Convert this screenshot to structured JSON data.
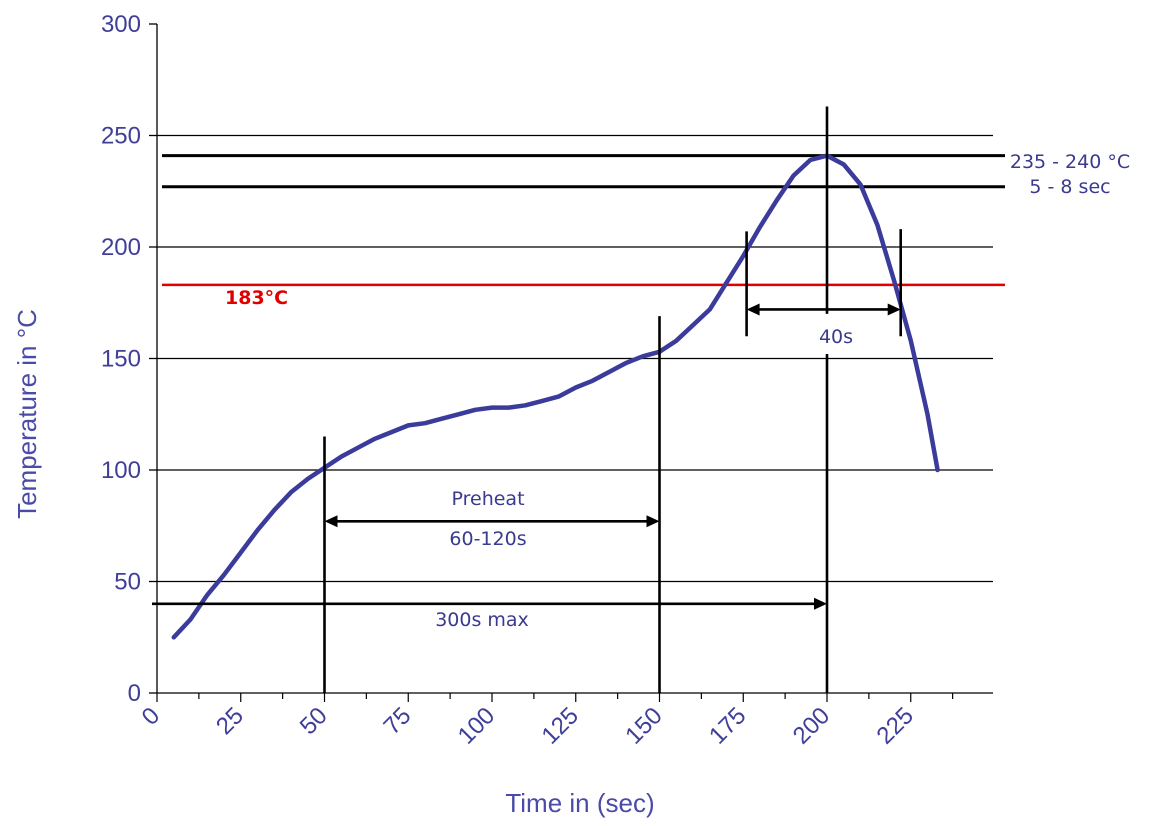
{
  "chart_data": {
    "type": "line",
    "title": "",
    "xlabel": "Time in (sec)",
    "ylabel": "Temperature in °C",
    "xlim": [
      0,
      235
    ],
    "ylim": [
      0,
      300
    ],
    "x_ticks": [
      "0",
      "25",
      "50",
      "75",
      "100",
      "125",
      "150",
      "175",
      "200",
      "225"
    ],
    "y_ticks": [
      "0",
      "50",
      "100",
      "150",
      "200",
      "250",
      "300"
    ],
    "grid": "horizontal",
    "series": [
      {
        "name": "",
        "color": "#3b3b9b",
        "x": [
          5,
          10,
          15,
          20,
          25,
          30,
          35,
          40,
          45,
          50,
          55,
          60,
          65,
          70,
          75,
          80,
          85,
          90,
          95,
          100,
          105,
          110,
          115,
          120,
          125,
          130,
          135,
          140,
          145,
          150,
          155,
          160,
          165,
          170,
          175,
          180,
          185,
          190,
          195,
          200,
          205,
          210,
          215,
          220,
          225,
          230,
          233
        ],
        "y": [
          25,
          33,
          44,
          53,
          63,
          73,
          82,
          90,
          96,
          101,
          106,
          110,
          114,
          117,
          120,
          121,
          123,
          125,
          127,
          128,
          128,
          129,
          131,
          133,
          137,
          140,
          144,
          148,
          151,
          153,
          158,
          165,
          172,
          184,
          196,
          209,
          221,
          232,
          239,
          241,
          237,
          228,
          210,
          185,
          158,
          125,
          100
        ]
      }
    ],
    "reference_lines": [
      {
        "y": 183,
        "color": "#e00000",
        "label": "183°C"
      },
      {
        "y": 241,
        "color": "#000000"
      },
      {
        "y": 227,
        "color": "#000000"
      }
    ],
    "markers": [
      {
        "x": 50,
        "y_range": [
          0,
          115
        ]
      },
      {
        "x": 150,
        "y_range": [
          0,
          169
        ]
      },
      {
        "x": 176,
        "y_range": [
          160,
          207
        ]
      },
      {
        "x": 200,
        "y_range": [
          0,
          152
        ]
      },
      {
        "x": 200,
        "y_range": [
          170,
          263
        ]
      },
      {
        "x": 222,
        "y_range": [
          160,
          208
        ]
      }
    ],
    "spans": [
      {
        "from": 50,
        "to": 150,
        "y": 77,
        "arrows": "both",
        "label": "Preheat",
        "label2": "60-120s"
      },
      {
        "from": 176,
        "to": 222,
        "y": 172,
        "arrows": "both",
        "label": "40s"
      },
      {
        "from": 0,
        "to": 200,
        "y": 40,
        "arrows": "end",
        "label": "300s max"
      }
    ],
    "annotations": {
      "peak_temp": "235 - 240 °C",
      "peak_time": "5 - 8 sec",
      "liquidus": "183°C"
    }
  }
}
